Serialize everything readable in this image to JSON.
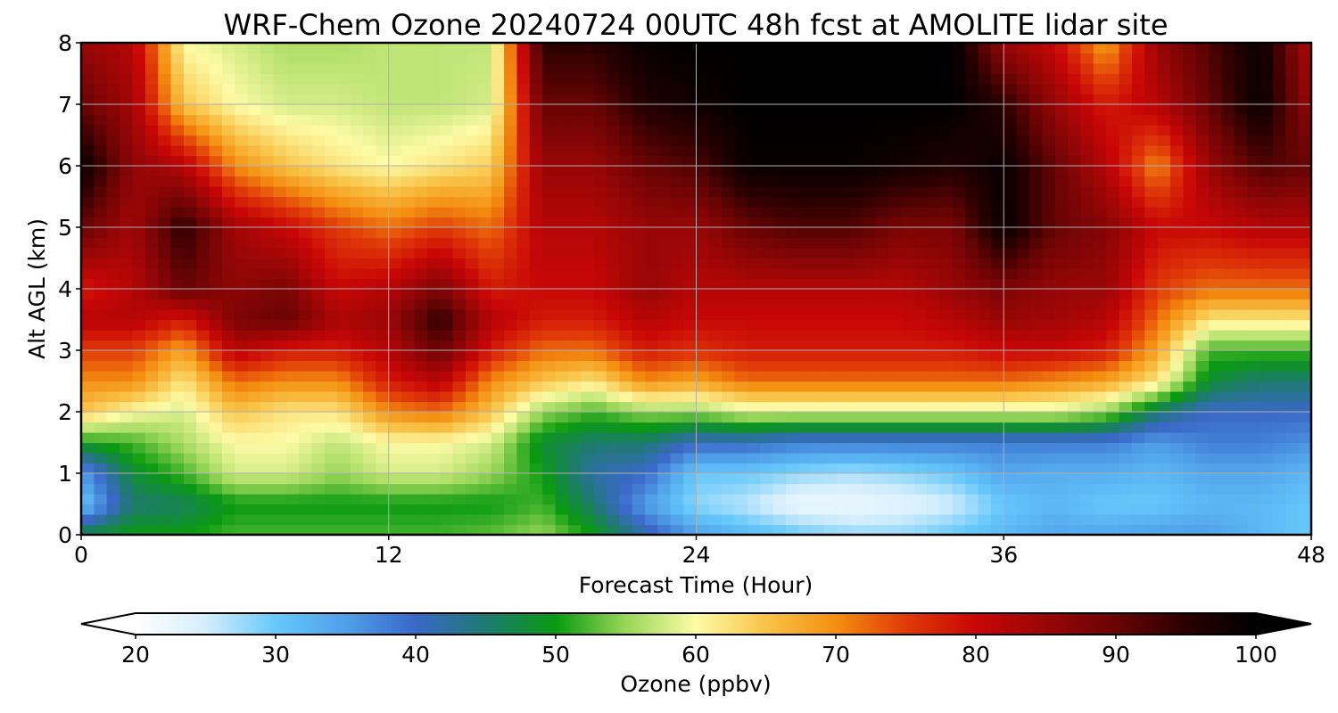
{
  "chart_data": {
    "type": "heatmap",
    "title": "WRF-Chem Ozone  20240724 00UTC 48h fcst at AMOLITE lidar site",
    "xlabel": "Forecast Time (Hour)",
    "ylabel": "Alt AGL (km)",
    "xlim": [
      0,
      48
    ],
    "ylim": [
      0,
      8
    ],
    "xticks": [
      0,
      12,
      24,
      36,
      48
    ],
    "yticks": [
      0,
      1,
      2,
      3,
      4,
      5,
      6,
      7,
      8
    ],
    "grid": true,
    "colorbar": {
      "label": "Ozone  (ppbv)",
      "orientation": "horizontal",
      "range": [
        20,
        100
      ],
      "ticks": [
        20,
        30,
        40,
        50,
        60,
        70,
        80,
        90,
        100
      ],
      "extend": "both",
      "colors": [
        {
          "value": 20,
          "color": "#ffffff"
        },
        {
          "value": 25,
          "color": "#d4eefc"
        },
        {
          "value": 30,
          "color": "#66c8fb"
        },
        {
          "value": 35,
          "color": "#4f9fe8"
        },
        {
          "value": 40,
          "color": "#3a68c8"
        },
        {
          "value": 45,
          "color": "#1e7a70"
        },
        {
          "value": 50,
          "color": "#0a9a10"
        },
        {
          "value": 55,
          "color": "#98d658"
        },
        {
          "value": 60,
          "color": "#fdfba6"
        },
        {
          "value": 65,
          "color": "#f8c448"
        },
        {
          "value": 70,
          "color": "#f48e10"
        },
        {
          "value": 75,
          "color": "#e03a08"
        },
        {
          "value": 80,
          "color": "#c80606"
        },
        {
          "value": 85,
          "color": "#980606"
        },
        {
          "value": 90,
          "color": "#680404"
        },
        {
          "value": 95,
          "color": "#2a0000"
        },
        {
          "value": 100,
          "color": "#000000"
        }
      ]
    },
    "x": [
      0,
      2,
      4,
      6,
      8,
      10,
      12,
      14,
      16,
      18,
      20,
      22,
      24,
      26,
      28,
      30,
      32,
      34,
      36,
      38,
      40,
      42,
      44,
      46,
      48
    ],
    "y": [
      0,
      0.5,
      1,
      1.5,
      2,
      2.5,
      3,
      3.5,
      4,
      5,
      6,
      7,
      8
    ],
    "z": [
      [
        48,
        30,
        35,
        50,
        65,
        70,
        75,
        82,
        78,
        90,
        99,
        90,
        85
      ],
      [
        50,
        45,
        48,
        52,
        60,
        70,
        75,
        82,
        82,
        84,
        86,
        84,
        82
      ],
      [
        50,
        46,
        52,
        56,
        58,
        62,
        68,
        78,
        90,
        95,
        82,
        65,
        60
      ],
      [
        52,
        50,
        58,
        60,
        65,
        72,
        82,
        88,
        86,
        84,
        70,
        60,
        58
      ],
      [
        52,
        50,
        58,
        60,
        62,
        70,
        78,
        90,
        88,
        80,
        65,
        58,
        56
      ],
      [
        52,
        50,
        55,
        57,
        62,
        70,
        78,
        83,
        80,
        75,
        62,
        58,
        56
      ],
      [
        52,
        50,
        58,
        60,
        70,
        78,
        82,
        85,
        82,
        72,
        60,
        57,
        57
      ],
      [
        52,
        50,
        58,
        60,
        72,
        82,
        90,
        95,
        88,
        75,
        62,
        57,
        57
      ],
      [
        53,
        50,
        55,
        58,
        65,
        70,
        78,
        82,
        78,
        72,
        64,
        58,
        57
      ],
      [
        55,
        52,
        50,
        48,
        55,
        65,
        72,
        78,
        80,
        82,
        85,
        90,
        95
      ],
      [
        50,
        45,
        42,
        45,
        52,
        62,
        72,
        78,
        80,
        82,
        85,
        90,
        95
      ],
      [
        42,
        35,
        40,
        45,
        55,
        70,
        78,
        82,
        85,
        85,
        90,
        96,
        99
      ],
      [
        35,
        28,
        30,
        40,
        55,
        68,
        76,
        80,
        82,
        85,
        92,
        98,
        100
      ],
      [
        32,
        26,
        30,
        40,
        58,
        72,
        78,
        80,
        82,
        90,
        99,
        100,
        100
      ],
      [
        30,
        22,
        28,
        38,
        58,
        72,
        78,
        80,
        82,
        92,
        99,
        100,
        100
      ],
      [
        28,
        22,
        27,
        38,
        58,
        72,
        78,
        80,
        82,
        92,
        99,
        100,
        100
      ],
      [
        28,
        23,
        28,
        38,
        58,
        72,
        78,
        80,
        82,
        88,
        98,
        100,
        100
      ],
      [
        30,
        25,
        30,
        38,
        58,
        72,
        78,
        82,
        85,
        88,
        96,
        100,
        100
      ],
      [
        32,
        30,
        34,
        38,
        58,
        72,
        80,
        85,
        88,
        99,
        99,
        95,
        85
      ],
      [
        34,
        32,
        33,
        38,
        58,
        70,
        80,
        84,
        85,
        90,
        90,
        85,
        80
      ],
      [
        34,
        30,
        33,
        38,
        55,
        68,
        78,
        82,
        85,
        87,
        82,
        78,
        68
      ],
      [
        35,
        30,
        32,
        35,
        45,
        62,
        68,
        72,
        75,
        80,
        70,
        82,
        85
      ],
      [
        35,
        32,
        34,
        38,
        40,
        48,
        52,
        62,
        72,
        80,
        85,
        90,
        92
      ],
      [
        32,
        32,
        34,
        38,
        40,
        45,
        52,
        62,
        72,
        82,
        92,
        99,
        99
      ],
      [
        30,
        30,
        32,
        36,
        40,
        45,
        52,
        62,
        72,
        82,
        90,
        85,
        82
      ]
    ]
  }
}
